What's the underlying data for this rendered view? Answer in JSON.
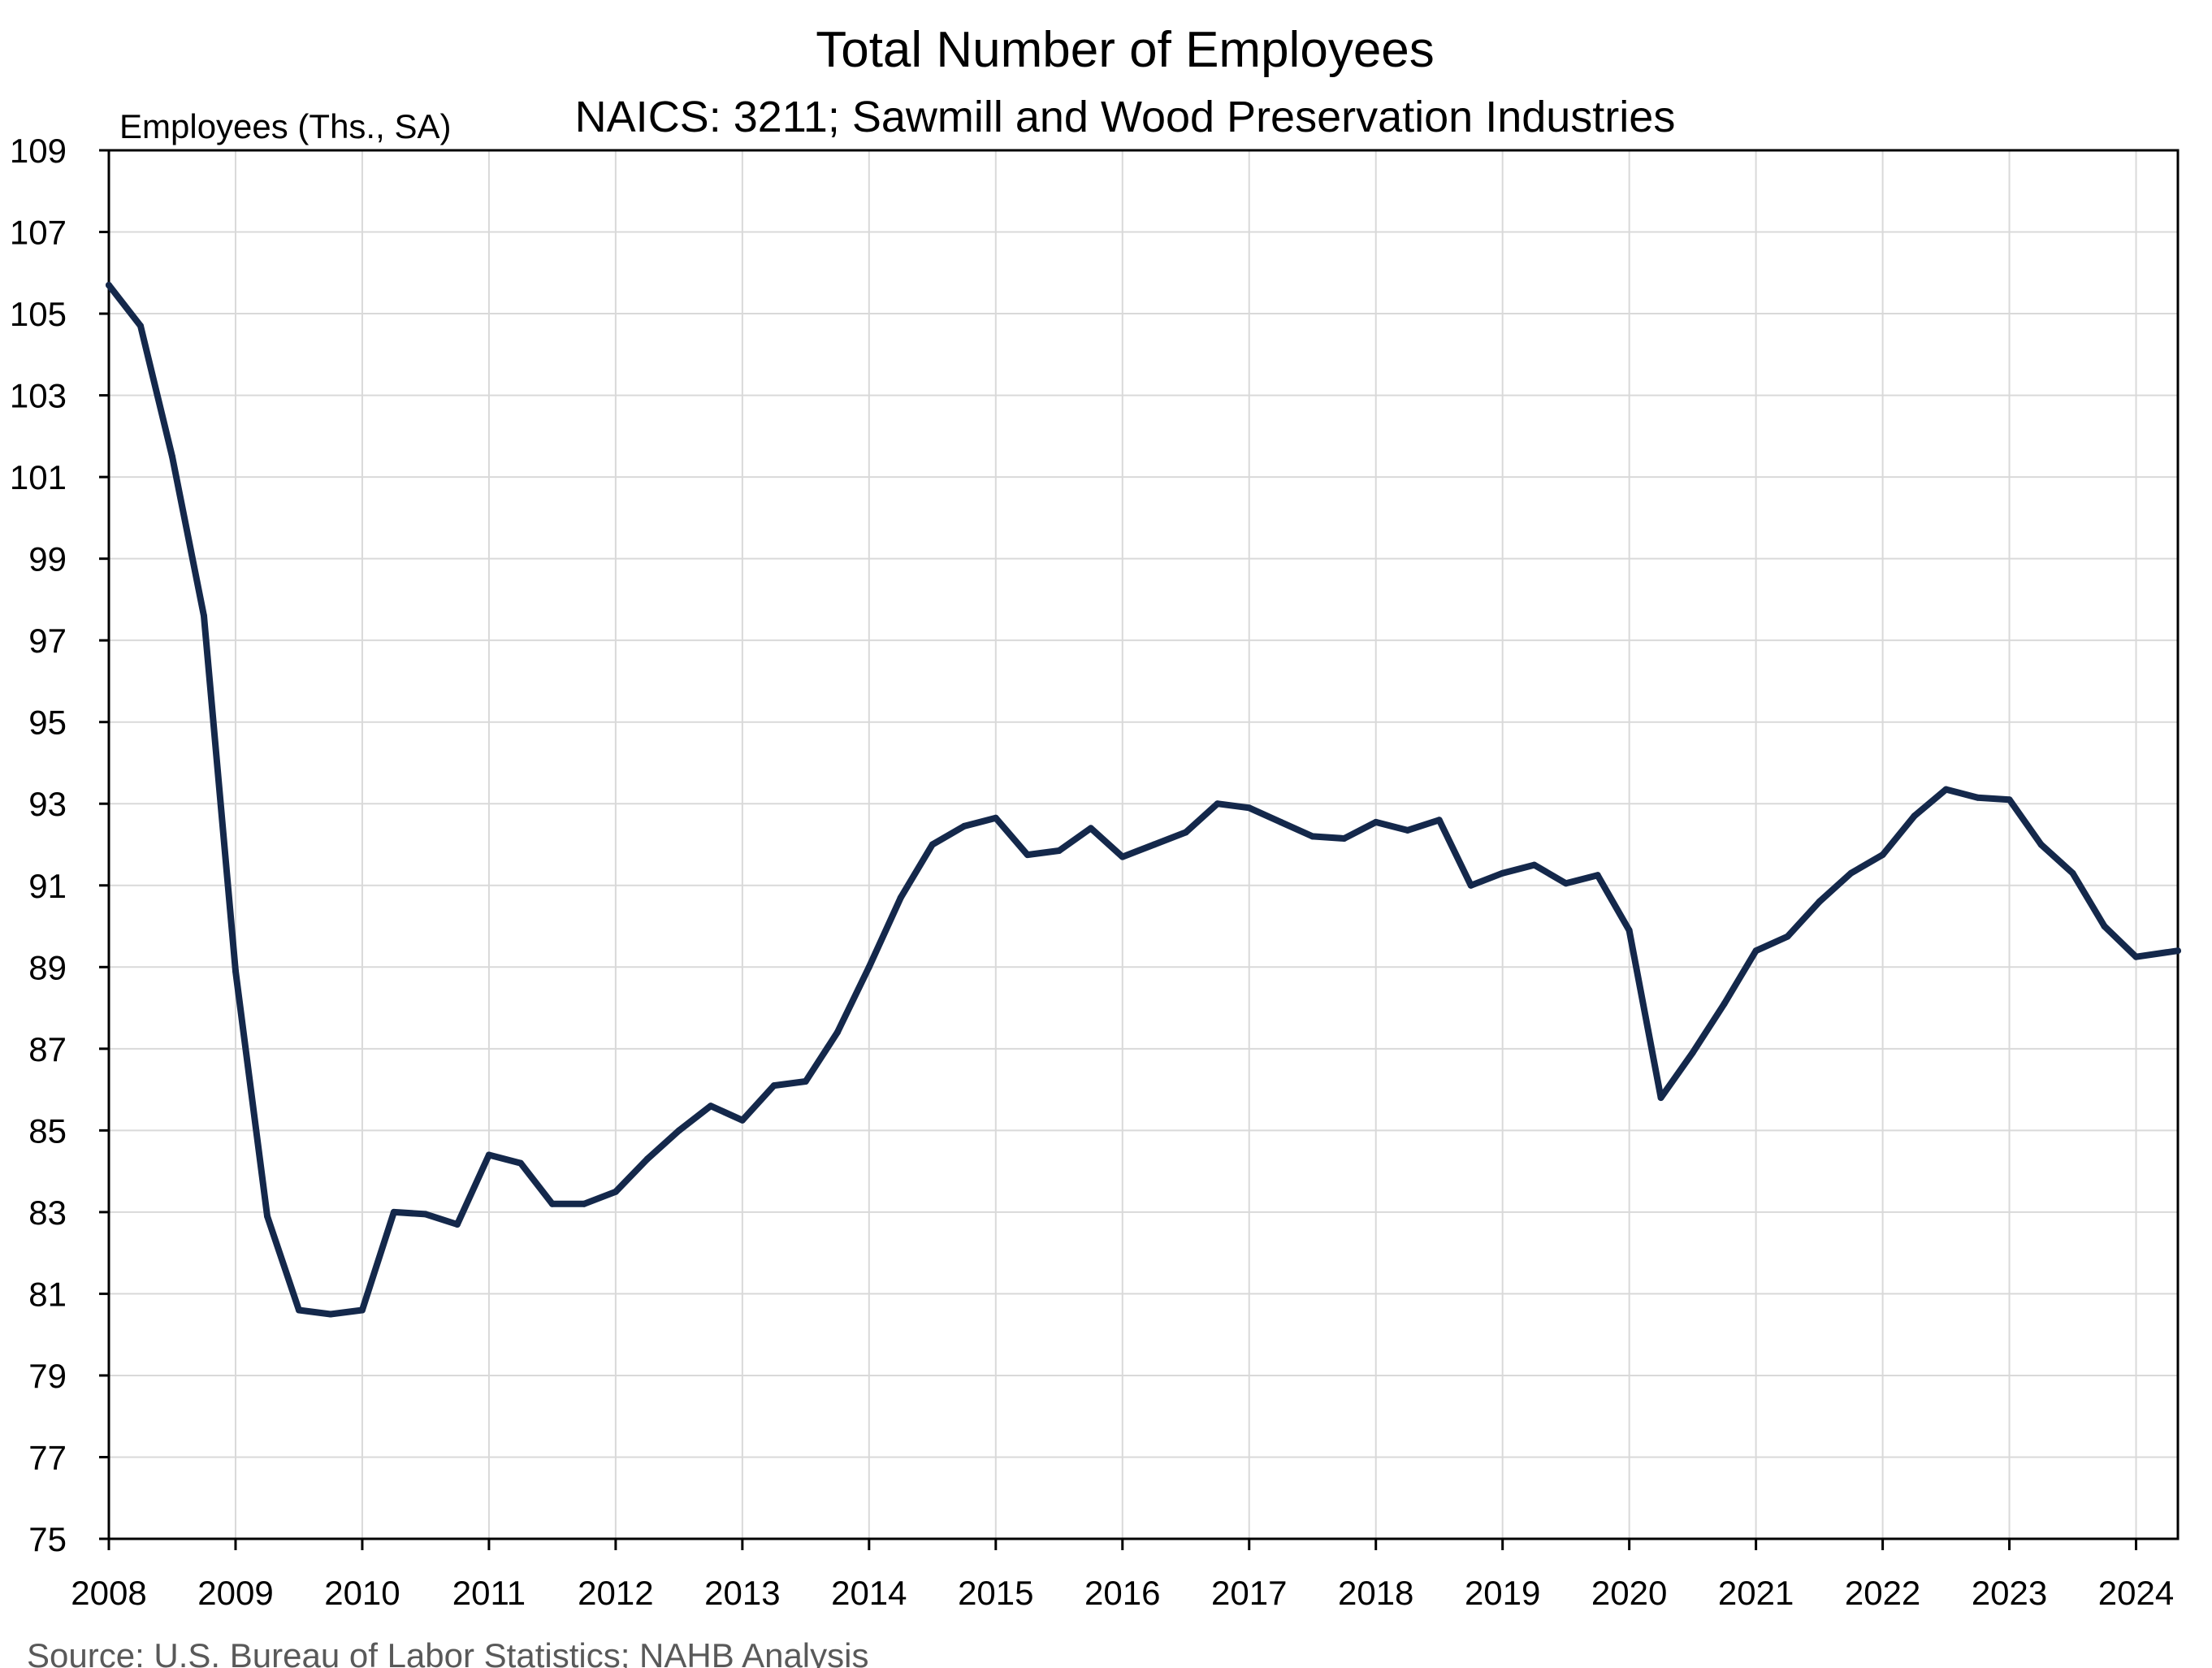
{
  "chart_data": {
    "type": "line",
    "title": "Total Number of Employees",
    "subtitle": "NAICS: 3211; Sawmill and Wood Preservation Industries",
    "ylabel": "Employees (Ths., SA)",
    "xlabel": "",
    "source": "Source: U.S. Bureau of Labor Statistics; NAHB Analysis",
    "ylim": [
      75,
      109
    ],
    "xlim": [
      2008.0,
      2024.33
    ],
    "y_ticks": [
      75,
      77,
      79,
      81,
      83,
      85,
      87,
      89,
      91,
      93,
      95,
      97,
      99,
      101,
      103,
      105,
      107,
      109
    ],
    "x_ticks": [
      2008,
      2009,
      2010,
      2011,
      2012,
      2013,
      2014,
      2015,
      2016,
      2017,
      2018,
      2019,
      2020,
      2021,
      2022,
      2023,
      2024
    ],
    "grid": true,
    "line_color": "#14284b",
    "series": [
      {
        "x": [
          2008.0,
          2008.25,
          2008.5,
          2008.75,
          2009.0,
          2009.25,
          2009.5,
          2009.75,
          2010.0,
          2010.25,
          2010.5,
          2010.75,
          2011.0,
          2011.25,
          2011.5,
          2011.75,
          2012.0,
          2012.25,
          2012.5,
          2012.75,
          2013.0,
          2013.25,
          2013.5,
          2013.75,
          2014.0,
          2014.25,
          2014.5,
          2014.75,
          2015.0,
          2015.25,
          2015.5,
          2015.75,
          2016.0,
          2016.25,
          2016.5,
          2016.75,
          2017.0,
          2017.25,
          2017.5,
          2017.75,
          2018.0,
          2018.25,
          2018.5,
          2018.75,
          2019.0,
          2019.25,
          2019.5,
          2019.75,
          2020.0,
          2020.25,
          2020.5,
          2020.75,
          2021.0,
          2021.25,
          2021.5,
          2021.75,
          2022.0,
          2022.25,
          2022.5,
          2022.75,
          2023.0,
          2023.25,
          2023.5,
          2023.75,
          2024.0,
          2024.33
        ],
        "values": [
          105.7,
          104.7,
          101.5,
          97.6,
          88.9,
          82.9,
          80.6,
          80.5,
          80.6,
          83.0,
          82.95,
          82.7,
          84.4,
          84.2,
          83.2,
          83.2,
          83.5,
          84.3,
          85.0,
          85.6,
          85.25,
          86.1,
          86.2,
          87.4,
          89.0,
          90.7,
          92.0,
          92.45,
          92.65,
          91.75,
          91.85,
          92.4,
          91.7,
          92.0,
          92.3,
          93.0,
          92.9,
          92.55,
          92.2,
          92.15,
          92.55,
          92.35,
          92.6,
          91.0,
          91.3,
          91.5,
          91.05,
          91.25,
          89.9,
          85.8,
          86.9,
          88.1,
          89.4,
          89.75,
          90.6,
          91.3,
          91.75,
          92.7,
          93.35,
          93.15,
          93.1,
          92.0,
          91.3,
          90.0,
          89.25,
          89.4
        ]
      }
    ]
  }
}
